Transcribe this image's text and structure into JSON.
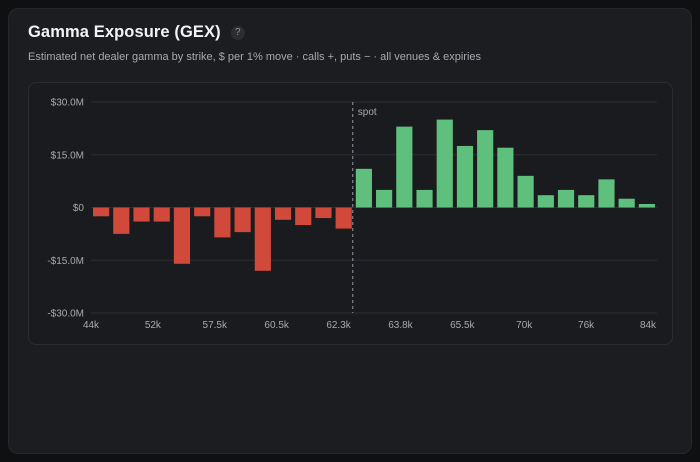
{
  "header": {
    "title": "Gamma Exposure (GEX)",
    "help_icon": "?",
    "subtitle": "Estimated net dealer gamma by strike, $ per 1% move · calls +, puts − · all venues & expiries"
  },
  "colors": {
    "positive": "#5fbf7c",
    "negative": "#d0493a",
    "grid": "#2c2e33",
    "spot_line": "#9a9da3",
    "axis_text": "#a6a9ae"
  },
  "chart_data": {
    "type": "bar",
    "title": "",
    "xlabel": "",
    "ylabel": "",
    "ylim": [
      -30,
      30
    ],
    "y_ticks": [
      {
        "value": 30,
        "label": "$30.0M"
      },
      {
        "value": 15,
        "label": "$15.0M"
      },
      {
        "value": 0,
        "label": "$0"
      },
      {
        "value": -15,
        "label": "-$15.0M"
      },
      {
        "value": -30,
        "label": "-$30.0M"
      }
    ],
    "x_tick_labels": [
      "44k",
      "52k",
      "57.5k",
      "60.5k",
      "62.3k",
      "63.8k",
      "65.5k",
      "70k",
      "76k",
      "84k"
    ],
    "spot_label": "spot",
    "spot_after_index": 12,
    "values": [
      -2.5,
      -7.5,
      -4,
      -4,
      -16,
      -2.5,
      -8.5,
      -7,
      -18,
      -3.5,
      -5,
      -3,
      -6,
      11,
      5,
      23,
      5,
      25,
      17.5,
      22,
      17,
      9,
      3.5,
      5,
      3.5,
      8,
      2.5,
      1
    ]
  }
}
